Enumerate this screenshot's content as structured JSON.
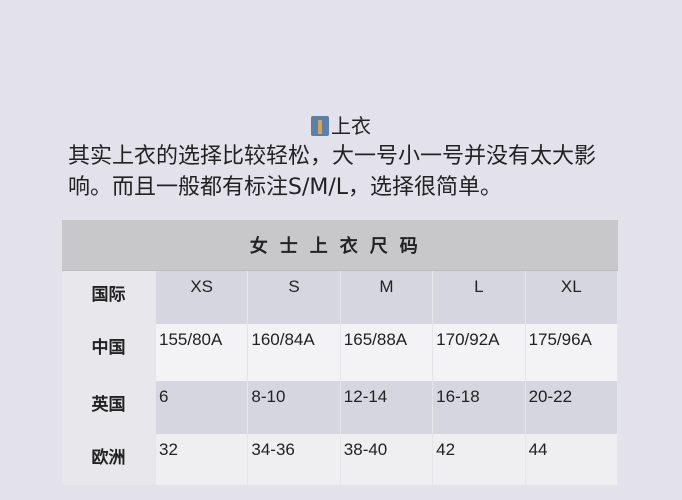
{
  "heading": {
    "icon": "shirt-tie-icon",
    "text": "上衣"
  },
  "paragraph": "其实上衣的选择比较轻松，大一号小一号并没有太大影响。而且一般都有标注S/M/L，选择很简单。",
  "table": {
    "caption": "女士上衣尺码",
    "header": {
      "label": "国际",
      "cells": [
        "XS",
        "S",
        "M",
        "L",
        "XL"
      ]
    },
    "rows": [
      {
        "label": "中国",
        "cells": [
          "155/80A",
          "160/84A",
          "165/88A",
          "170/92A",
          "175/96A"
        ]
      },
      {
        "label": "英国",
        "cells": [
          "6",
          "8-10",
          "12-14",
          "16-18",
          "20-22"
        ]
      },
      {
        "label": "欧洲",
        "cells": [
          "32",
          "34-36",
          "38-40",
          "42",
          "44"
        ]
      }
    ]
  }
}
